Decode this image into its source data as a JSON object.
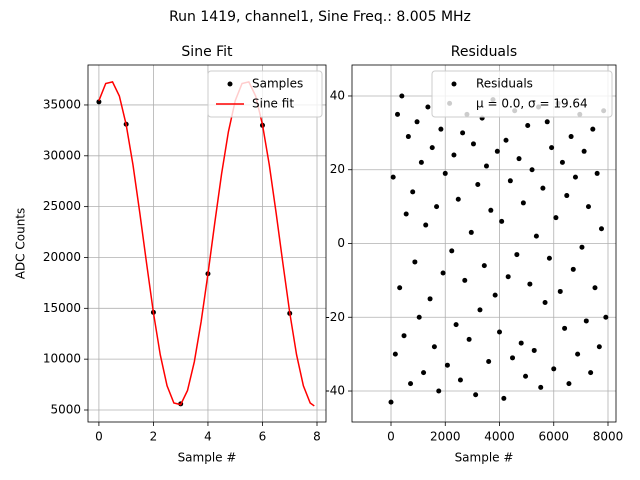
{
  "title": "Run 1419, channel1, Sine Freq.: 8.005 MHz",
  "chart_data": [
    {
      "type": "line",
      "title": "Sine Fit",
      "xlabel": "Sample #",
      "ylabel": "ADC Counts",
      "xlim": [
        -0.4,
        8.33
      ],
      "ylim": [
        3820,
        38930
      ],
      "xticks": [
        0,
        2,
        4,
        6,
        8
      ],
      "yticks": [
        5000,
        10000,
        15000,
        20000,
        25000,
        30000,
        35000
      ],
      "grid": true,
      "legend": "upper right",
      "series": [
        {
          "name": "Samples",
          "style": "points",
          "color": "#000000",
          "x": [
            0,
            1,
            2,
            3,
            4,
            6,
            7
          ],
          "values": [
            35300,
            33100,
            14600,
            5600,
            18400,
            33000,
            14500
          ]
        },
        {
          "name": "Sine fit",
          "style": "line",
          "color": "#ff0000",
          "x": [
            0,
            0.25,
            0.5,
            0.75,
            1,
            1.25,
            1.5,
            1.75,
            2,
            2.25,
            2.5,
            2.75,
            3,
            3.25,
            3.5,
            3.75,
            4,
            4.25,
            4.5,
            4.75,
            5,
            5.25,
            5.5,
            5.75,
            6,
            6.25,
            6.5,
            6.75,
            7,
            7.25,
            7.5,
            7.75,
            7.9
          ],
          "values": [
            35420,
            37110,
            37270,
            35880,
            33060,
            29110,
            24390,
            19400,
            14570,
            10440,
            7380,
            5690,
            5530,
            6920,
            9740,
            13690,
            18380,
            23400,
            28220,
            32360,
            35420,
            37110,
            37270,
            35880,
            33060,
            29110,
            24390,
            19400,
            14570,
            10440,
            7380,
            5690,
            5400
          ]
        }
      ]
    },
    {
      "type": "scatter",
      "title": "Residuals",
      "xlabel": "Sample #",
      "xlim": [
        -1438,
        8295
      ],
      "ylim": [
        -48.4,
        48.4
      ],
      "xticks": [
        0,
        2000,
        4000,
        6000,
        8000
      ],
      "yticks": [
        -40,
        -20,
        0,
        20,
        40
      ],
      "grid": true,
      "legend": "upper right",
      "series": [
        {
          "name": "Residuals",
          "stats": "μ = 0.0, σ = 19.64",
          "style": "points",
          "color": "#000000",
          "x": [
            0,
            80,
            160,
            240,
            320,
            400,
            480,
            560,
            640,
            720,
            800,
            880,
            960,
            1040,
            1120,
            1200,
            1280,
            1360,
            1440,
            1520,
            1600,
            1680,
            1760,
            1840,
            1920,
            2000,
            2080,
            2160,
            2240,
            2320,
            2400,
            2480,
            2560,
            2640,
            2720,
            2800,
            2880,
            2960,
            3040,
            3120,
            3200,
            3280,
            3360,
            3440,
            3520,
            3600,
            3680,
            3760,
            3840,
            3920,
            4000,
            4080,
            4160,
            4240,
            4320,
            4400,
            4480,
            4560,
            4640,
            4720,
            4800,
            4880,
            4960,
            5040,
            5120,
            5200,
            5280,
            5360,
            5440,
            5520,
            5600,
            5680,
            5760,
            5840,
            5920,
            6000,
            6080,
            6160,
            6240,
            6320,
            6400,
            6480,
            6560,
            6640,
            6720,
            6800,
            6880,
            6960,
            7040,
            7120,
            7200,
            7280,
            7360,
            7440,
            7520,
            7600,
            7680,
            7760,
            7840,
            7920
          ],
          "values": [
            -43,
            18,
            -30,
            35,
            -12,
            40,
            -25,
            8,
            29,
            -38,
            14,
            -5,
            33,
            -20,
            22,
            -35,
            5,
            37,
            -15,
            26,
            -28,
            10,
            -40,
            31,
            -8,
            19,
            -33,
            38,
            -2,
            24,
            -22,
            12,
            -37,
            30,
            -10,
            35,
            -26,
            3,
            27,
            -41,
            16,
            -18,
            34,
            -6,
            21,
            -32,
            9,
            39,
            -14,
            25,
            -24,
            6,
            -42,
            28,
            -9,
            17,
            -31,
            36,
            -3,
            23,
            -27,
            11,
            -36,
            32,
            -11,
            20,
            -29,
            2,
            37,
            -39,
            15,
            -16,
            33,
            -4,
            26,
            -34,
            7,
            38,
            -13,
            22,
            -23,
            13,
            -38,
            29,
            -7,
            18,
            -30,
            35,
            -1,
            25,
            -21,
            10,
            -35,
            31,
            -12,
            19,
            -28,
            4,
            36,
            -20
          ]
        }
      ]
    }
  ]
}
